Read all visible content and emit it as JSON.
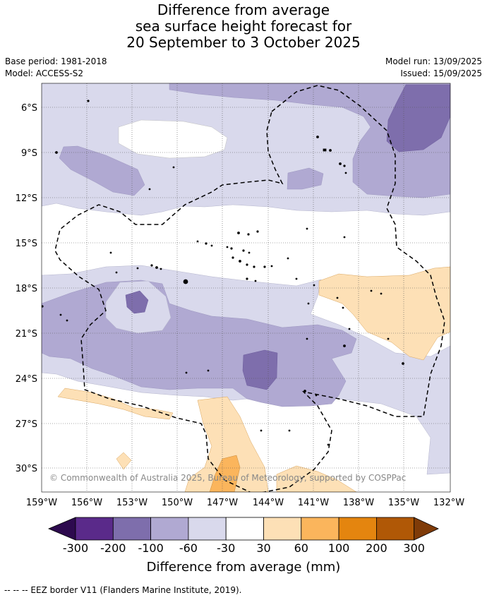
{
  "title": {
    "line1": "Difference from average",
    "line2": "sea surface height forecast for",
    "line3": "20 September to 3 October 2025"
  },
  "meta": {
    "base_period": "Base period: 1981-2018",
    "model": "Model: ACCESS-S2",
    "model_run": "Model run: 13/09/2025",
    "issued": "Issued: 15/09/2025"
  },
  "map": {
    "lon_labels": [
      "159°W",
      "156°W",
      "153°W",
      "150°W",
      "147°W",
      "144°W",
      "141°W",
      "138°W",
      "135°W",
      "132°W"
    ],
    "lat_labels": [
      "6°S",
      "9°S",
      "12°S",
      "15°S",
      "18°S",
      "21°S",
      "24°S",
      "27°S",
      "30°S"
    ],
    "copyright": "© Commonwealth of Australia 2025, Bureau of Meteorology, supported by COSPPac",
    "gridlines": true
  },
  "colorbar": {
    "tick_labels": [
      "-300",
      "-200",
      "-100",
      "-60",
      "-30",
      "30",
      "60",
      "100",
      "200",
      "300"
    ],
    "colors": [
      "#2d0a4e",
      "#5a2a8a",
      "#7e6eac",
      "#b0a9d2",
      "#d9d9ec",
      "#ffffff",
      "#fde0b6",
      "#fbb55c",
      "#e4850f",
      "#b05806",
      "#7f3b08"
    ],
    "label": "Difference from average (mm)"
  },
  "footer": {
    "legend": "--  --  -- EEZ border V11 (Flanders Marine Institute, 2019)."
  }
}
